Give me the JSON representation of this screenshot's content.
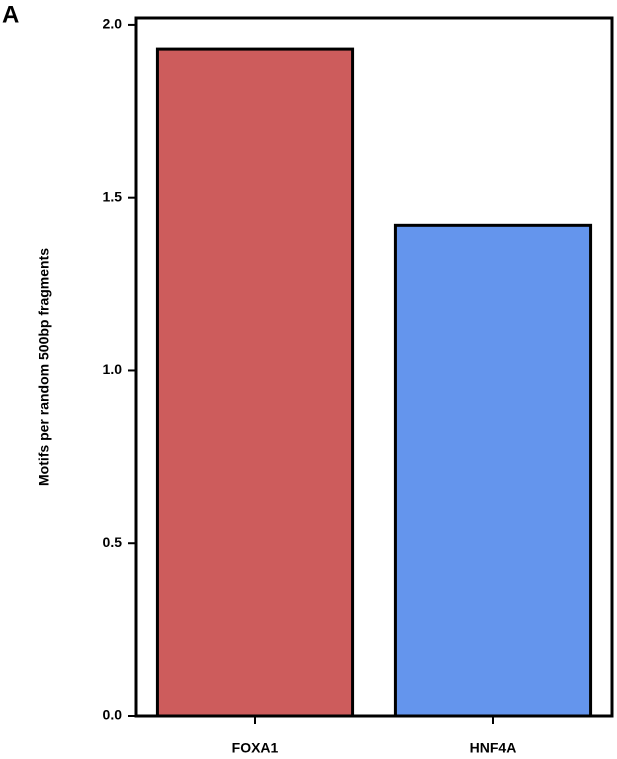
{
  "chart_data": {
    "type": "bar",
    "panel_label": "A",
    "ylabel": "Motifs per random 500bp fragments",
    "categories": [
      "FOXA1",
      "HNF4A"
    ],
    "values": [
      1.93,
      1.42
    ],
    "colors": [
      "#cd5c5c",
      "#6495ed"
    ],
    "ylim": [
      0,
      2.02
    ],
    "yticks": [
      {
        "value": 0,
        "label": "0.0"
      },
      0.5,
      {
        "value": 1,
        "label": "1.0"
      },
      1.5,
      {
        "value": 2,
        "label": "2.0"
      }
    ]
  }
}
